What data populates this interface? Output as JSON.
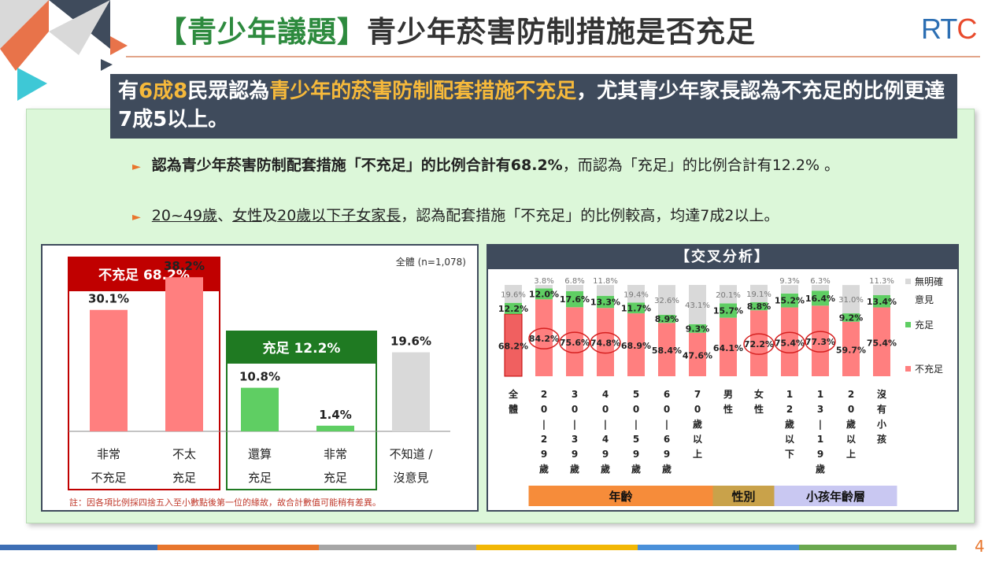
{
  "title": {
    "tag": "【青少年議題】",
    "text": "青少年菸害防制措施是否充足"
  },
  "logo": {
    "main": "RT",
    "accent": "C"
  },
  "headline": {
    "part1": "有",
    "hl1": "6成8",
    "part2": "民眾認為",
    "hl2": "青少年的菸害防制配套措施不充足",
    "part3": "，尤其青少年家長認為不充足的比例更達7成5以上。"
  },
  "bullets": {
    "b1_bold": "認為青少年菸害防制配套措施「不充足」的比例合計有68.2%",
    "b1_rest": "，而認為「充足」的比例合計有12.2% 。",
    "b2_u1": "20~49歲",
    "b2_sep1": "、",
    "b2_u2": "女性",
    "b2_sep2": "及",
    "b2_u3": "20歲以下子女家長",
    "b2_rest": "，認為配套措施「不充足」的比例較高，均達7成2以上。"
  },
  "page_number": "4",
  "colors": {
    "insufficient": "#ff7f7f",
    "sufficient": "#5fce63",
    "unknown": "#d9d9d9",
    "red_frame": "#c00000",
    "green_frame": "#1f7a22",
    "dark": "#3f4b5c"
  },
  "chart_data": [
    {
      "type": "bar",
      "sample_label": "全體 (n=1,078)",
      "group_boxes": [
        {
          "label": "不充足  68.2%",
          "color": "#c00000"
        },
        {
          "label": "充足  12.2%",
          "color": "#1f7a22"
        }
      ],
      "categories": [
        [
          "非常",
          "不充足"
        ],
        [
          "不太",
          "充足"
        ],
        [
          "還算",
          "充足"
        ],
        [
          "非常",
          "充足"
        ],
        [
          "不知道 /",
          "沒意見"
        ]
      ],
      "values": [
        30.1,
        38.2,
        10.8,
        1.4,
        19.6
      ],
      "value_labels": [
        "30.1%",
        "38.2%",
        "10.8%",
        "1.4%",
        "19.6%"
      ],
      "bar_colors": [
        "#ff7f7f",
        "#ff7f7f",
        "#5fce63",
        "#5fce63",
        "#d9d9d9"
      ],
      "ylim": [
        0,
        40
      ],
      "note": "註：因各項比例採四捨五入至小數點後第一位的緣故，故合計數值可能稍有差異。"
    },
    {
      "type": "bar",
      "stacked": true,
      "title": "【交叉分析】",
      "categories": [
        "全體",
        "20|29歲",
        "30|39歲",
        "40|49歲",
        "50|59歲",
        "60|69歲",
        "70歲以上",
        "男性",
        "女性",
        "12歲以下",
        "13|19歲",
        "20歲以上",
        "沒有小孩"
      ],
      "category_labels": [
        [
          "全",
          "體"
        ],
        [
          "2",
          "0",
          "|",
          "2",
          "9",
          "歲"
        ],
        [
          "3",
          "0",
          "|",
          "3",
          "9",
          "歲"
        ],
        [
          "4",
          "0",
          "|",
          "4",
          "9",
          "歲"
        ],
        [
          "5",
          "0",
          "|",
          "5",
          "9",
          "歲"
        ],
        [
          "6",
          "0",
          "|",
          "6",
          "9",
          "歲"
        ],
        [
          "7",
          "0",
          "歲",
          "以",
          "上"
        ],
        [
          "男",
          "性"
        ],
        [
          "女",
          "性"
        ],
        [
          "1",
          "2",
          "歲",
          "以",
          "下"
        ],
        [
          "1",
          "3",
          "|",
          "1",
          "9",
          "歲"
        ],
        [
          "2",
          "0",
          "歲",
          "以",
          "上"
        ],
        [
          "沒",
          "有",
          "小",
          "孩"
        ]
      ],
      "series": [
        {
          "name": "不充足",
          "values": [
            68.2,
            84.2,
            75.6,
            74.8,
            68.9,
            58.4,
            47.6,
            64.1,
            72.2,
            75.4,
            77.3,
            59.7,
            75.4
          ],
          "labels": [
            "68.2%",
            "84.2%",
            "75.6%",
            "74.8%",
            "68.9%",
            "58.4%",
            "47.6%",
            "64.1%",
            "72.2%",
            "75.4%",
            "77.3%",
            "59.7%",
            "75.4%"
          ]
        },
        {
          "name": "充足",
          "values": [
            12.2,
            12.0,
            17.6,
            13.3,
            11.7,
            8.9,
            9.3,
            15.7,
            8.8,
            15.2,
            16.4,
            9.2,
            13.4
          ],
          "labels": [
            "12.2%",
            "12.0%",
            "17.6%",
            "13.3%",
            "11.7%",
            "8.9%",
            "9.3%",
            "15.7%",
            "8.8%",
            "15.2%",
            "16.4%",
            "9.2%",
            "13.4%"
          ]
        },
        {
          "name": "無明確意見",
          "values": [
            19.6,
            3.8,
            6.8,
            11.8,
            19.4,
            32.6,
            43.1,
            20.1,
            19.1,
            9.3,
            6.3,
            31.0,
            11.3
          ],
          "labels": [
            "19.6%",
            "3.8%",
            "6.8%",
            "11.8%",
            "19.4%",
            "32.6%",
            "43.1%",
            "20.1%",
            "19.1%",
            "9.3%",
            "6.3%",
            "31.0%",
            "11.3%"
          ]
        }
      ],
      "legend": [
        {
          "lines": [
            "無明確",
            "意見"
          ],
          "color": "#d9d9d9"
        },
        {
          "lines": [
            "充足"
          ],
          "color": "#5fce63"
        },
        {
          "lines": [
            "不充足"
          ],
          "color": "#ff7f7f"
        }
      ],
      "circled": [
        1,
        2,
        3,
        8,
        9,
        10
      ],
      "groups": [
        {
          "label": "年齡",
          "from": 1,
          "to": 6,
          "color": "#f68c3a"
        },
        {
          "label": "性別",
          "from": 7,
          "to": 8,
          "color": "#c9a24a"
        },
        {
          "label": "小孩年齡層",
          "from": 9,
          "to": 12,
          "color": "#c9c8f2"
        }
      ],
      "ylim": [
        0,
        100
      ]
    }
  ]
}
